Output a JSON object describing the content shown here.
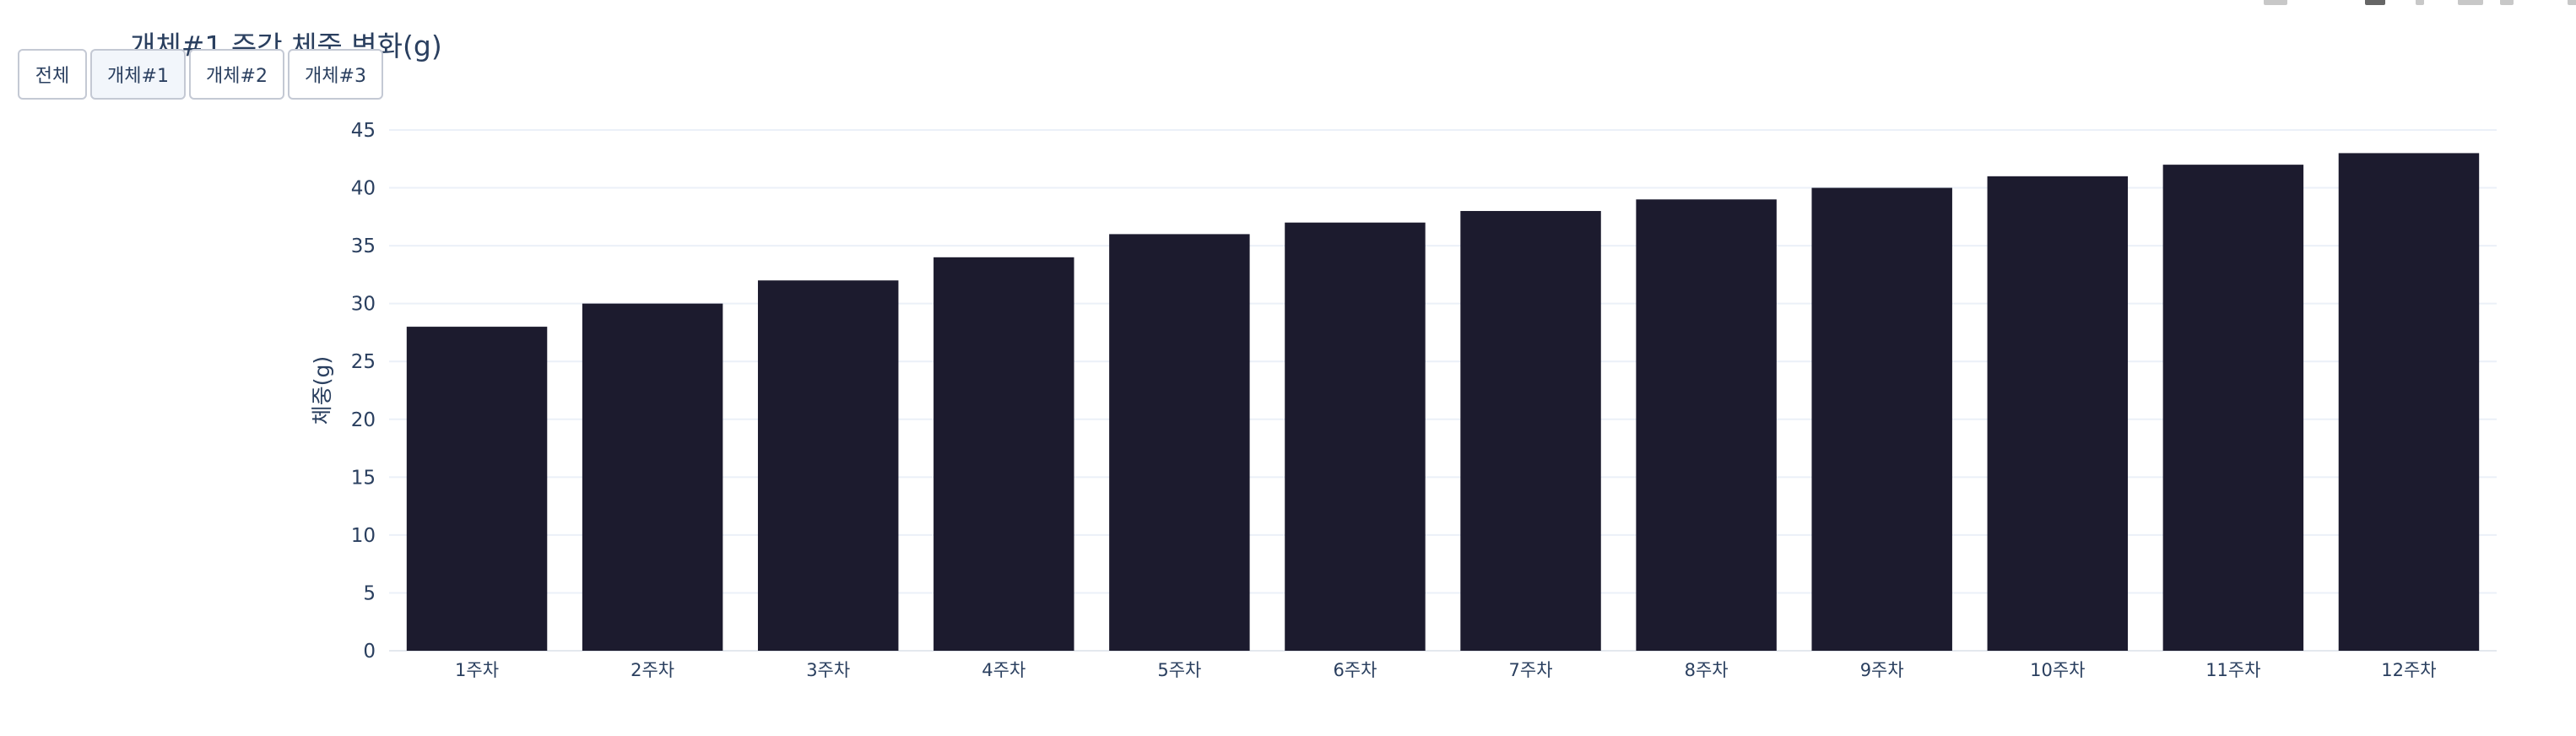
{
  "buttons": [
    {
      "label": "전체",
      "active": false
    },
    {
      "label": "개체#1",
      "active": true
    },
    {
      "label": "개체#2",
      "active": false
    },
    {
      "label": "개체#3",
      "active": false
    }
  ],
  "modebar_icons": [
    "camera-icon",
    "zoom-icon",
    "pan-icon",
    "box-select-icon",
    "lasso-icon",
    "zoom-in-icon",
    "zoom-out-icon",
    "autoscale-icon",
    "reset-axes-icon"
  ],
  "chart_data": {
    "type": "bar",
    "title": "개체#1 주간 체중 변화(g)",
    "xlabel": "",
    "ylabel": "체중(g)",
    "categories": [
      "1주차",
      "2주차",
      "3주차",
      "4주차",
      "5주차",
      "6주차",
      "7주차",
      "8주차",
      "9주차",
      "10주차",
      "11주차",
      "12주차"
    ],
    "values": [
      28,
      30,
      32,
      34,
      36,
      37,
      38,
      39,
      40,
      41,
      42,
      43
    ],
    "ylim": [
      0,
      45
    ],
    "yticks": [
      0,
      5,
      10,
      15,
      20,
      25,
      30,
      35,
      40,
      45
    ],
    "grid": true,
    "bar_color": "#1c1b2e"
  }
}
